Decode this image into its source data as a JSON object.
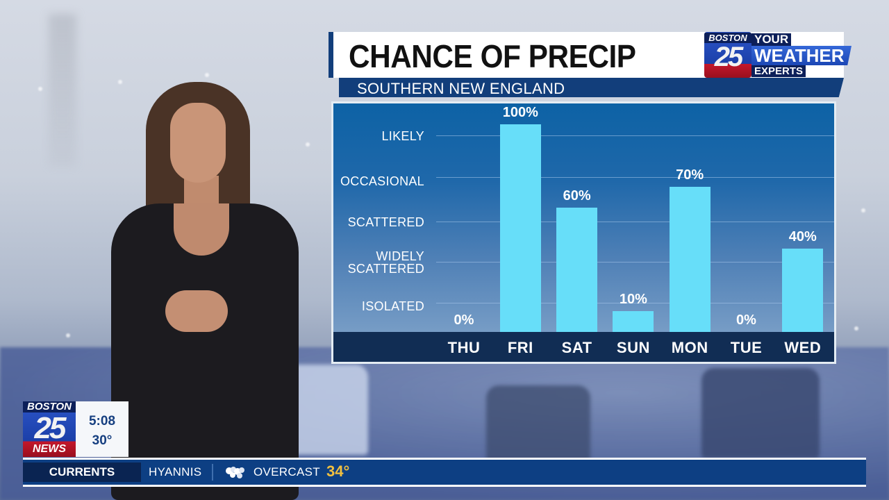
{
  "header": {
    "title": "CHANCE OF PRECIP",
    "subtitle": "SOUTHERN NEW ENGLAND"
  },
  "brand": {
    "station": "BOSTON",
    "channel": "25",
    "tagline_line1": "YOUR",
    "tagline_line2": "WEATHER",
    "tagline_line3": "EXPERTS"
  },
  "chart_data": {
    "type": "bar",
    "title": "CHANCE OF PRECIP",
    "subtitle": "SOUTHERN NEW ENGLAND",
    "xlabel": "",
    "ylabel": "",
    "categories": [
      "THU",
      "FRI",
      "SAT",
      "SUN",
      "MON",
      "TUE",
      "WED"
    ],
    "values": [
      0,
      100,
      60,
      10,
      70,
      0,
      40
    ],
    "value_labels": [
      "0%",
      "100%",
      "60%",
      "10%",
      "70%",
      "0%",
      "40%"
    ],
    "ylim": [
      0,
      100
    ],
    "y_tick_labels": [
      "ISOLATED",
      "WIDELY SCATTERED",
      "SCATTERED",
      "OCCASIONAL",
      "LIKELY"
    ],
    "grid": true,
    "legend": "none",
    "bar_color": "#67def9",
    "background_color": "#1f68aa"
  },
  "y_axis": {
    "labels": [
      {
        "line1": "LIKELY",
        "line2": ""
      },
      {
        "line1": "OCCASIONAL",
        "line2": ""
      },
      {
        "line1": "SCATTERED",
        "line2": ""
      },
      {
        "line1": "WIDELY",
        "line2": "SCATTERED"
      },
      {
        "line1": "ISOLATED",
        "line2": ""
      }
    ]
  },
  "bug": {
    "station": "BOSTON",
    "channel": "25",
    "brand": "NEWS",
    "time": "5:08",
    "temperature": "30°"
  },
  "ticker": {
    "label": "CURRENTS",
    "city": "HYANNIS",
    "icon": "overcast-cloud-icon",
    "condition": "OVERCAST",
    "temperature": "34°",
    "accent_color": "#f1c040"
  }
}
